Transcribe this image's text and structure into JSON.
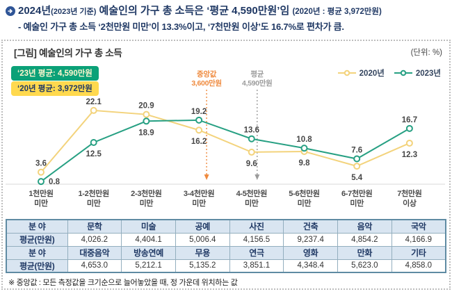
{
  "header": {
    "title_year": "2024년",
    "title_year_note": "(2023년 기준)",
    "title_main": " 예술인의 가구 총 소득은 ‘평균 4,590만원’임 ",
    "title_note": "(2020년 : 평균 3,972만원)",
    "subtitle": "- 예술인 가구 총 소득 ‘2천만원 미만’이 13.3%이고, ‘7천만원 이상’도 16.7%로 편차가 큼.",
    "text_color": "#1f3864"
  },
  "figure": {
    "title": "[그림] 예술인의 가구 총 소득",
    "unit": "(단위: %)",
    "badges": [
      {
        "text": "‘23년 평균: 4,590만원",
        "bg": "#0ba178",
        "fg": "#fff6cf"
      },
      {
        "text": "‘20년 평균: 3,972만원",
        "bg": "#ffd94e",
        "fg": "#1f3864"
      }
    ],
    "annotations": [
      {
        "title": "중앙값",
        "value": "3,600만원",
        "color": "#ef8a3e",
        "category_index": 3,
        "dx": 11
      },
      {
        "title": "평균",
        "value": "4,590만원",
        "color": "#9b9b9b",
        "category_index": 4,
        "dx": 8
      }
    ],
    "footnote": "※ 중앙값 : 모든 측정값을 크기순으로 늘어놓았을 때, 정 가운데 위치하는 값"
  },
  "chart_data": {
    "type": "line",
    "title": "[그림] 예술인의 가구 총 소득",
    "unit": "%",
    "xlabel": "",
    "ylabel": "",
    "ylim": [
      0,
      25
    ],
    "grid": false,
    "legend_position": "top-right",
    "categories": [
      "1천만원 미만",
      "1-2천만원 미만",
      "2-3천만원 미만",
      "3-4천만원 미만",
      "4-5천만원 미만",
      "5-6천만원 미만",
      "6-7천만원 미만",
      "7천만원 이상"
    ],
    "series": [
      {
        "name": "2020년",
        "color": "#f3d37c",
        "values": [
          3.6,
          22.1,
          20.9,
          16.2,
          9.6,
          9.8,
          5.4,
          12.3
        ],
        "label_pos": [
          "above",
          "above",
          "above",
          "below",
          "below",
          "below",
          "below",
          "below"
        ]
      },
      {
        "name": "2023년",
        "color": "#27a083",
        "values": [
          0.8,
          12.5,
          18.9,
          19.2,
          13.6,
          10.8,
          7.6,
          16.7
        ],
        "label_pos": [
          "right",
          "below",
          "below",
          "above",
          "above",
          "above",
          "above",
          "above"
        ]
      }
    ],
    "reference_lines": [
      {
        "label": "중앙값 3,600만원",
        "at_category": "3-4천만원 미만"
      },
      {
        "label": "평균 4,590만원",
        "at_category": "4-5천만원 미만"
      }
    ]
  },
  "table": {
    "rows": [
      {
        "type": "header",
        "cells": [
          "분 야",
          "문학",
          "미술",
          "공예",
          "사진",
          "건축",
          "음악",
          "국악"
        ]
      },
      {
        "type": "data",
        "cells": [
          "평균(만원)",
          "4,026.2",
          "4,404.1",
          "5,006.4",
          "4,156.5",
          "9,237.4",
          "4,854.2",
          "4,166.9"
        ]
      },
      {
        "type": "header",
        "cells": [
          "분 야",
          "대중음악",
          "방송연예",
          "무용",
          "연극",
          "영화",
          "만화",
          "기타"
        ]
      },
      {
        "type": "data",
        "cells": [
          "평균(만원)",
          "4,653.0",
          "5,212.1",
          "5,135.2",
          "3,851.1",
          "4,348.4",
          "5,623.0",
          "4,858.0"
        ]
      }
    ]
  }
}
